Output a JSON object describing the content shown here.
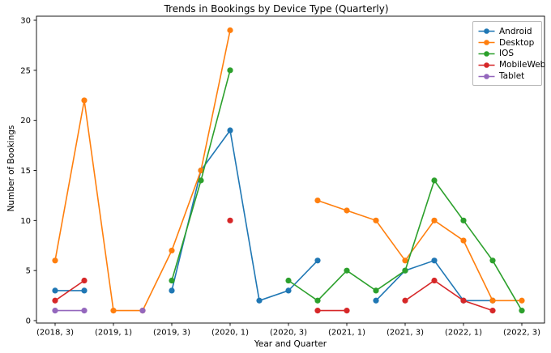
{
  "figure": {
    "title": "Trends in Bookings by Device Type (Quarterly)",
    "xlabel": "Year and Quarter",
    "ylabel": "Number of Bookings"
  },
  "chart_data": {
    "type": "line",
    "title": "Trends in Bookings by Device Type (Quarterly)",
    "xlabel": "Year and Quarter",
    "ylabel": "Number of Bookings",
    "grid": false,
    "legend_position": "upper right",
    "x_categories": [
      "(2018, 3)",
      "(2018, 4)",
      "(2019, 1)",
      "(2019, 2)",
      "(2019, 3)",
      "(2019, 4)",
      "(2020, 1)",
      "(2020, 2)",
      "(2020, 3)",
      "(2020, 4)",
      "(2021, 1)",
      "(2021, 2)",
      "(2021, 3)",
      "(2021, 4)",
      "(2022, 1)",
      "(2022, 2)",
      "(2022, 3)"
    ],
    "x_tick_indices": [
      0,
      2,
      4,
      6,
      8,
      10,
      12,
      14,
      16
    ],
    "x_tick_labels": [
      "(2018, 3)",
      "(2019, 1)",
      "(2019, 3)",
      "(2020, 1)",
      "(2020, 3)",
      "(2021, 1)",
      "(2021, 3)",
      "(2022, 1)",
      "(2022, 3)"
    ],
    "y_ticks": [
      0,
      5,
      10,
      15,
      20,
      25,
      30
    ],
    "ylim": [
      -0.3,
      30.4
    ],
    "series": [
      {
        "name": "Android",
        "color": "#1f77b4",
        "values": [
          3,
          3,
          null,
          null,
          3,
          15,
          19,
          2,
          3,
          6,
          null,
          2,
          5,
          6,
          2,
          2,
          null
        ]
      },
      {
        "name": "Desktop",
        "color": "#ff7f0e",
        "values": [
          6,
          22,
          1,
          1,
          7,
          15,
          29,
          null,
          null,
          12,
          11,
          10,
          6,
          10,
          8,
          2,
          2
        ]
      },
      {
        "name": "IOS",
        "color": "#2ca02c",
        "values": [
          null,
          null,
          null,
          null,
          4,
          14,
          25,
          null,
          4,
          2,
          5,
          3,
          5,
          14,
          10,
          6,
          1
        ]
      },
      {
        "name": "MobileWeb",
        "color": "#d62728",
        "values": [
          2,
          4,
          null,
          null,
          null,
          null,
          10,
          null,
          null,
          1,
          1,
          null,
          2,
          4,
          2,
          1,
          null
        ]
      },
      {
        "name": "Tablet",
        "color": "#9467bd",
        "values": [
          1,
          1,
          null,
          1,
          null,
          null,
          null,
          null,
          null,
          null,
          null,
          null,
          null,
          null,
          null,
          null,
          null
        ]
      }
    ],
    "axis_color": "#000000"
  }
}
